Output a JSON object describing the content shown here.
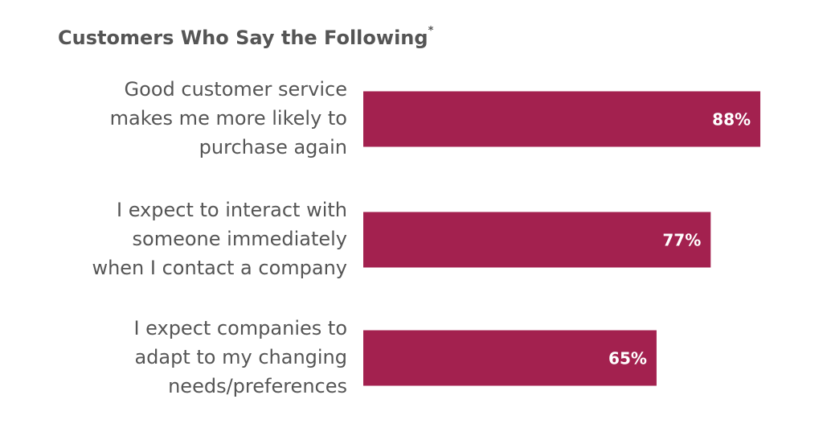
{
  "chart_data": {
    "type": "bar",
    "orientation": "horizontal",
    "title": "Customers Who Say the Following",
    "title_mark": "*",
    "categories": [
      [
        "Good customer service",
        "makes me more likely to",
        "purchase again"
      ],
      [
        "I expect to interact with",
        "someone immediately",
        "when I contact a company"
      ],
      [
        "I expect companies to",
        "adapt to my changing",
        "needs/preferences"
      ]
    ],
    "values": [
      88,
      77,
      65
    ],
    "value_labels": [
      "88%",
      "77%",
      "65%"
    ],
    "color": "#a3214f"
  }
}
